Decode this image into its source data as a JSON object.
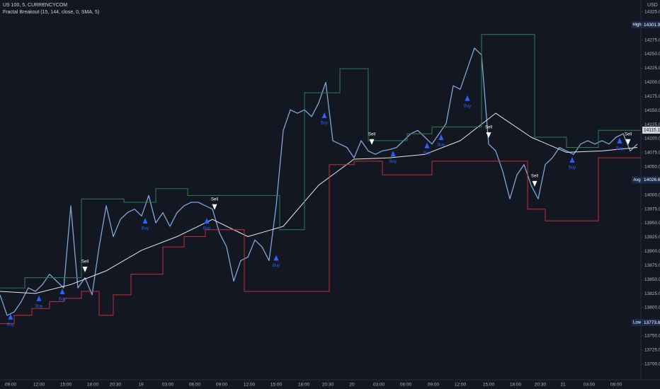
{
  "chart_data": {
    "type": "line",
    "title": "US 100, 5, CURRENCYCOM",
    "subtitle": "Fractal Breakout (15, 144, close, 0, SMA, 5)",
    "y_axis_label": "USD",
    "grid": false,
    "xlim": [
      0,
      90.5
    ],
    "ylim": [
      13672,
      14346
    ],
    "xticks": [
      {
        "value": 1.5,
        "label": "09:00"
      },
      {
        "value": 5.5,
        "label": "12:00"
      },
      {
        "value": 9.3,
        "label": "15:00"
      },
      {
        "value": 13.1,
        "label": "18:00"
      },
      {
        "value": 16.3,
        "label": "20:30"
      },
      {
        "value": 19.9,
        "label": "19"
      },
      {
        "value": 23.7,
        "label": "03:00"
      },
      {
        "value": 27.5,
        "label": "06:00"
      },
      {
        "value": 31.3,
        "label": "09:00"
      },
      {
        "value": 35.2,
        "label": "12:00"
      },
      {
        "value": 39,
        "label": "15:00"
      },
      {
        "value": 42.9,
        "label": "18:00"
      },
      {
        "value": 46.3,
        "label": "20:30"
      },
      {
        "value": 49.7,
        "label": "20"
      },
      {
        "value": 53.5,
        "label": "03:00"
      },
      {
        "value": 57.3,
        "label": "06:00"
      },
      {
        "value": 61.2,
        "label": "09:00"
      },
      {
        "value": 65,
        "label": "12:00"
      },
      {
        "value": 69,
        "label": "15:00"
      },
      {
        "value": 72.8,
        "label": "18:00"
      },
      {
        "value": 76.3,
        "label": "20:30"
      },
      {
        "value": 79.5,
        "label": "21"
      },
      {
        "value": 83.2,
        "label": "03:00"
      },
      {
        "value": 87,
        "label": "06:00"
      }
    ],
    "yticks": [
      {
        "value": 13700,
        "label": "13700.0"
      },
      {
        "value": 13725,
        "label": "13725.0"
      },
      {
        "value": 13750,
        "label": "13750.0"
      },
      {
        "value": 13775,
        "label": "13775.0"
      },
      {
        "value": 13800,
        "label": "13800.0"
      },
      {
        "value": 13825,
        "label": "13825.0"
      },
      {
        "value": 13850,
        "label": "13850.0"
      },
      {
        "value": 13875,
        "label": "13875.0"
      },
      {
        "value": 13900,
        "label": "13900.0"
      },
      {
        "value": 13925,
        "label": "13925.0"
      },
      {
        "value": 13950,
        "label": "13950.0"
      },
      {
        "value": 13975,
        "label": "13975.0"
      },
      {
        "value": 14000,
        "label": "14000.0"
      },
      {
        "value": 14025,
        "label": "14025.0"
      },
      {
        "value": 14050,
        "label": "14050.0"
      },
      {
        "value": 14075,
        "label": "14075.0"
      },
      {
        "value": 14100,
        "label": "14100.0"
      },
      {
        "value": 14125,
        "label": "14125.0"
      },
      {
        "value": 14150,
        "label": "14150.0"
      },
      {
        "value": 14175,
        "label": "14175.0"
      },
      {
        "value": 14200,
        "label": "14200.0"
      },
      {
        "value": 14225,
        "label": "14225.0"
      },
      {
        "value": 14250,
        "label": "14250.0"
      },
      {
        "value": 14275,
        "label": "14275.0"
      },
      {
        "value": 14300,
        "label": "14300.0"
      },
      {
        "value": 14325,
        "label": "14325.0"
      }
    ],
    "series": [
      {
        "style": "line",
        "color": "#7fa6d8",
        "x": [
          0,
          1,
          2,
          3,
          4,
          5,
          6,
          7,
          8,
          9,
          10,
          11,
          12,
          13,
          14,
          15,
          16,
          17,
          18,
          19,
          20,
          21,
          22,
          23,
          24,
          25,
          26,
          27,
          28,
          29,
          30,
          31,
          32,
          33,
          34,
          35,
          36,
          37,
          38,
          39,
          40,
          41,
          42,
          43,
          44,
          45,
          46,
          47,
          48,
          49,
          50,
          51,
          52,
          53,
          54,
          55,
          56,
          57,
          58,
          59,
          60,
          61,
          62,
          63,
          64,
          65,
          66,
          67,
          68,
          69,
          70,
          71,
          72,
          73,
          74,
          75,
          76,
          77,
          78,
          79,
          80,
          81,
          82,
          83,
          84,
          85,
          86,
          87,
          88,
          89,
          90
        ],
        "values": [
          13822.8,
          13786.3,
          13792.4,
          13810.7,
          13835.0,
          13828.9,
          13841.1,
          13859.3,
          13847.1,
          13835.0,
          13980.9,
          13835.0,
          13853.2,
          13822.8,
          13907.9,
          13980.9,
          13926.2,
          13956.6,
          13968.7,
          13974.8,
          13962.7,
          13999.1,
          13950.5,
          13968.7,
          13944.4,
          13968.7,
          13980.9,
          13987.0,
          13987.0,
          13980.9,
          13974.8,
          13932.3,
          13907.9,
          13847.1,
          13883.6,
          13889.7,
          13920.1,
          13907.9,
          13883.6,
          13980.9,
          14114.7,
          14151.1,
          14145.1,
          14151.1,
          14139.0,
          14163.3,
          14199.8,
          14096.4,
          14090.3,
          14084.3,
          14066.0,
          14096.4,
          14078.2,
          14072.1,
          14078.2,
          14080.6,
          14084.3,
          14096.4,
          14108.6,
          14114.7,
          14102.5,
          14090.3,
          14108.6,
          14126.8,
          14193.7,
          14187.6,
          14224.1,
          14260.6,
          14248.4,
          14090.3,
          14078.2,
          14041.7,
          13993.1,
          14035.6,
          14053.9,
          14017.4,
          13993.1,
          14053.9,
          14066.0,
          14084.3,
          14078.2,
          14072.1,
          14090.3,
          14096.4,
          14090.3,
          14096.4,
          14090.3,
          14102.5,
          14108.6,
          14078.2,
          14090.3
        ]
      },
      {
        "style": "line",
        "color": "#e8e8e8",
        "x": [
          0,
          5,
          10,
          15,
          20,
          25,
          30,
          35,
          40,
          45,
          50,
          55,
          60,
          65,
          70,
          75,
          80,
          85,
          90
        ],
        "values": [
          13828.9,
          13825.2,
          13841.1,
          13865.4,
          13901.9,
          13926.2,
          13956.6,
          13926.2,
          13944.4,
          14017.4,
          14063.6,
          14066.0,
          14072.1,
          14096.4,
          14145.1,
          14102.5,
          14075.7,
          14078.2,
          14084.3
        ]
      },
      {
        "style": "step",
        "color": "#2e7d4f",
        "x": [
          0,
          3.5,
          11.5,
          17.5,
          22,
          26.5,
          39.5,
          43,
          48,
          52,
          57.5,
          61,
          68,
          75.5,
          80,
          84.5
        ],
        "values": [
          13835.0,
          13853.2,
          13993.1,
          13987.0,
          14011.3,
          13999.1,
          13938.3,
          14181.5,
          14224.1,
          14096.4,
          14108.6,
          14120.7,
          14284.9,
          14102.5,
          14084.3,
          14114.7
        ]
      },
      {
        "style": "step",
        "color": "#c62e3a",
        "x": [
          0,
          2,
          4.5,
          7,
          9,
          11.5,
          14,
          16,
          18.5,
          23,
          26,
          29,
          34.5,
          46.5,
          50,
          54,
          61,
          74.5,
          77,
          84.5
        ],
        "values": [
          13771.7,
          13786.3,
          13798.5,
          13810.7,
          13816.7,
          13828.9,
          13786.3,
          13822.8,
          13859.3,
          13907.9,
          13926.2,
          13938.3,
          13828.9,
          14053.9,
          14060.0,
          14035.6,
          14060.0,
          13974.8,
          13954.2,
          14066.0
        ]
      }
    ],
    "signals": [
      {
        "label": "Buy",
        "x": 1.5,
        "value": 13784.0
      },
      {
        "label": "Buy",
        "x": 5.5,
        "value": 13816.7
      },
      {
        "label": "Buy",
        "x": 8.8,
        "value": 13828.9
      },
      {
        "label": "Sell",
        "x": 12,
        "value": 13867.8
      },
      {
        "label": "Buy",
        "x": 20.5,
        "value": 13954.2
      },
      {
        "label": "Buy",
        "x": 29.2,
        "value": 13954.2
      },
      {
        "label": "Sell",
        "x": 30.3,
        "value": 13978.5
      },
      {
        "label": "Buy",
        "x": 39,
        "value": 13888.5
      },
      {
        "label": "Buy",
        "x": 45.8,
        "value": 14141.4
      },
      {
        "label": "Sell",
        "x": 52.5,
        "value": 14094.0
      },
      {
        "label": "Buy",
        "x": 55.5,
        "value": 14073.3
      },
      {
        "label": "Buy",
        "x": 60.3,
        "value": 14087.9
      },
      {
        "label": "Buy",
        "x": 62.3,
        "value": 14102.5
      },
      {
        "label": "Buy",
        "x": 66,
        "value": 14171.8
      },
      {
        "label": "Sell",
        "x": 69,
        "value": 14106.1
      },
      {
        "label": "Sell",
        "x": 75.5,
        "value": 14019.8
      },
      {
        "label": "Buy",
        "x": 80.8,
        "value": 14062.4
      },
      {
        "label": "Buy",
        "x": 87.5,
        "value": 14096.4
      },
      {
        "label": "Sell",
        "x": 88.7,
        "value": 14094.0
      }
    ],
    "price_labels": [
      {
        "label": "High",
        "value": 14301.9
      },
      {
        "label": "Avg",
        "value": 14026.6
      },
      {
        "label": "Low",
        "value": 13773.6
      }
    ],
    "last_price": 14115.1
  }
}
